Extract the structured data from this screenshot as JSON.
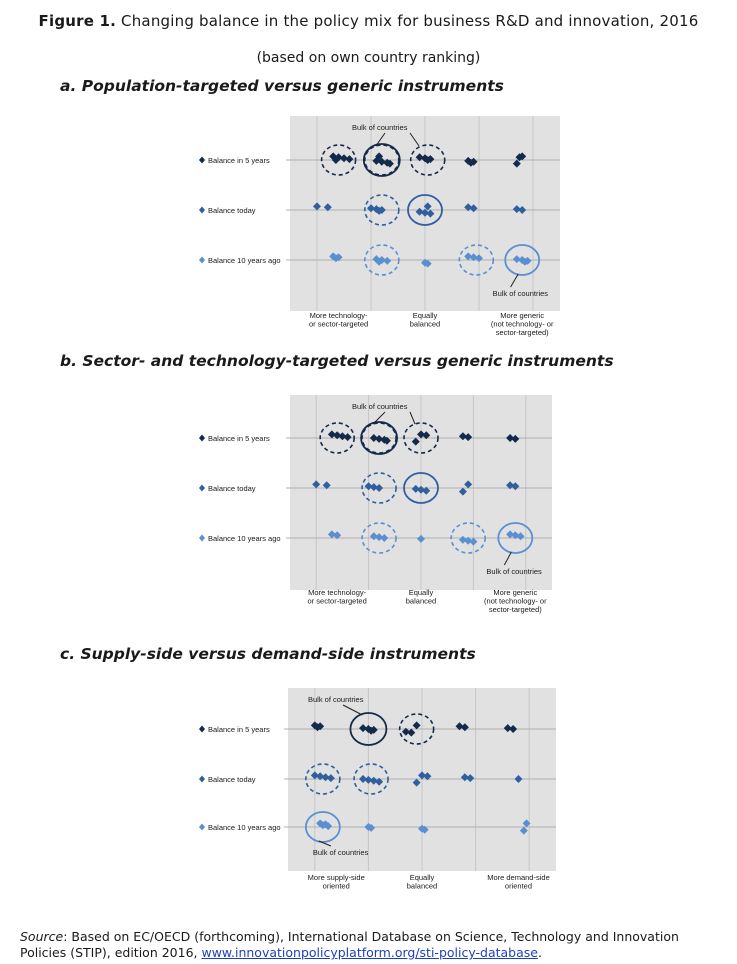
{
  "figure": {
    "label": "Figure 1.",
    "title": "Changing balance in the policy mix for business R&D and innovation, 2016",
    "subtitle": "(based on own country ranking)"
  },
  "colors": {
    "five_years": "#132a4a",
    "today": "#2f5f9e",
    "ten_years_ago": "#5a8fd2",
    "plot_bg": "#e1e1e1",
    "grid": "#c6c6c6"
  },
  "chart_data": [
    {
      "type": "scatter",
      "heading": "a. Population-targeted versus generic instruments",
      "series": [
        {
          "name": "Balance in 5 years",
          "y": 3,
          "points": [
            [
              1.3,
              3
            ],
            [
              1.4,
              3
            ],
            [
              1.5,
              3
            ],
            [
              1.6,
              3
            ],
            [
              1.35,
              3
            ],
            [
              2.1,
              3
            ],
            [
              2.2,
              3
            ],
            [
              2.3,
              3
            ],
            [
              2.35,
              3
            ],
            [
              2.15,
              3
            ],
            [
              2.9,
              3
            ],
            [
              3.0,
              3
            ],
            [
              3.1,
              3
            ],
            [
              3.05,
              3
            ],
            [
              3.8,
              3
            ],
            [
              3.9,
              3
            ],
            [
              3.85,
              3
            ],
            [
              4.7,
              3
            ],
            [
              4.8,
              3
            ],
            [
              4.75,
              3
            ]
          ]
        },
        {
          "name": "Balance today",
          "y": 2,
          "points": [
            [
              1.0,
              2
            ],
            [
              1.2,
              2
            ],
            [
              2.0,
              2
            ],
            [
              2.1,
              2
            ],
            [
              2.2,
              2
            ],
            [
              2.15,
              2
            ],
            [
              2.9,
              2
            ],
            [
              3.0,
              2
            ],
            [
              3.1,
              2
            ],
            [
              3.05,
              2
            ],
            [
              3.8,
              2
            ],
            [
              3.9,
              2
            ],
            [
              4.7,
              2
            ],
            [
              4.8,
              2
            ]
          ]
        },
        {
          "name": "Balance 10 years ago",
          "y": 1,
          "points": [
            [
              1.3,
              1
            ],
            [
              1.4,
              1
            ],
            [
              1.35,
              1
            ],
            [
              2.1,
              1
            ],
            [
              2.2,
              1
            ],
            [
              2.3,
              1
            ],
            [
              2.15,
              1
            ],
            [
              3.0,
              1
            ],
            [
              3.05,
              1
            ],
            [
              3.8,
              1
            ],
            [
              3.9,
              1
            ],
            [
              4.0,
              1
            ],
            [
              4.7,
              1
            ],
            [
              4.8,
              1
            ],
            [
              4.9,
              1
            ],
            [
              4.85,
              1
            ]
          ]
        }
      ],
      "x_axis": {
        "ticks": [
          1,
          2,
          3,
          4,
          5
        ],
        "labels": [
          "More technology-\nor sector-targeted",
          "Equally\nbalanced",
          "More generic\n(not technology- or\nsector-targeted)"
        ]
      },
      "bulk_label": "Bulk of countries",
      "grid": true
    },
    {
      "type": "scatter",
      "heading": "b. Sector- and technology-targeted versus generic instruments",
      "series": [
        {
          "name": "Balance in 5 years",
          "y": 3,
          "points": [
            [
              1.3,
              3
            ],
            [
              1.4,
              3
            ],
            [
              1.5,
              3
            ],
            [
              1.6,
              3
            ],
            [
              2.1,
              3
            ],
            [
              2.2,
              3
            ],
            [
              2.3,
              3
            ],
            [
              2.35,
              3
            ],
            [
              2.9,
              3
            ],
            [
              3.0,
              3
            ],
            [
              3.1,
              3
            ],
            [
              3.8,
              3
            ],
            [
              3.9,
              3
            ],
            [
              4.7,
              3
            ],
            [
              4.8,
              3
            ]
          ]
        },
        {
          "name": "Balance today",
          "y": 2,
          "points": [
            [
              1.0,
              2
            ],
            [
              1.2,
              2
            ],
            [
              2.0,
              2
            ],
            [
              2.1,
              2
            ],
            [
              2.2,
              2
            ],
            [
              2.9,
              2
            ],
            [
              3.0,
              2
            ],
            [
              3.1,
              2
            ],
            [
              3.8,
              2
            ],
            [
              3.9,
              2
            ],
            [
              4.7,
              2
            ],
            [
              4.8,
              2
            ]
          ]
        },
        {
          "name": "Balance 10 years ago",
          "y": 1,
          "points": [
            [
              1.3,
              1
            ],
            [
              1.4,
              1
            ],
            [
              2.1,
              1
            ],
            [
              2.2,
              1
            ],
            [
              2.3,
              1
            ],
            [
              3.0,
              1
            ],
            [
              3.8,
              1
            ],
            [
              3.9,
              1
            ],
            [
              4.0,
              1
            ],
            [
              4.7,
              1
            ],
            [
              4.8,
              1
            ],
            [
              4.9,
              1
            ]
          ]
        }
      ],
      "x_axis": {
        "ticks": [
          1,
          2,
          3,
          4,
          5
        ],
        "labels": [
          "More technology-\nor sector-targeted",
          "Equally\nbalanced",
          "More generic\n(not technology- or\nsector-targeted)"
        ]
      },
      "bulk_label": "Bulk of countries",
      "grid": true
    },
    {
      "type": "scatter",
      "heading": "c. Supply-side versus demand-side instruments",
      "series": [
        {
          "name": "Balance in 5 years",
          "y": 3,
          "points": [
            [
              1.0,
              3
            ],
            [
              1.1,
              3
            ],
            [
              1.05,
              3
            ],
            [
              1.9,
              3
            ],
            [
              2.0,
              3
            ],
            [
              2.1,
              3
            ],
            [
              2.05,
              3
            ],
            [
              2.7,
              3
            ],
            [
              2.8,
              3
            ],
            [
              2.9,
              3
            ],
            [
              3.7,
              3
            ],
            [
              3.8,
              3
            ],
            [
              4.6,
              3
            ],
            [
              4.7,
              3
            ]
          ]
        },
        {
          "name": "Balance today",
          "y": 2,
          "points": [
            [
              1.0,
              2
            ],
            [
              1.1,
              2
            ],
            [
              1.2,
              2
            ],
            [
              1.3,
              2
            ],
            [
              1.9,
              2
            ],
            [
              2.0,
              2
            ],
            [
              2.1,
              2
            ],
            [
              2.2,
              2
            ],
            [
              2.9,
              2
            ],
            [
              3.0,
              2
            ],
            [
              3.1,
              2
            ],
            [
              3.8,
              2
            ],
            [
              3.9,
              2
            ],
            [
              4.8,
              2
            ]
          ]
        },
        {
          "name": "Balance 10 years ago",
          "y": 1,
          "points": [
            [
              1.1,
              1
            ],
            [
              1.2,
              1
            ],
            [
              1.15,
              1
            ],
            [
              1.25,
              1
            ],
            [
              2.0,
              1
            ],
            [
              2.05,
              1
            ],
            [
              3.0,
              1
            ],
            [
              3.05,
              1
            ],
            [
              4.9,
              1
            ],
            [
              4.95,
              1
            ]
          ]
        }
      ],
      "x_axis": {
        "ticks": [
          1,
          2,
          3,
          4,
          5
        ],
        "labels": [
          "More supply-side\noriented",
          "Equally\nbalanced",
          "More demand-side\noriented"
        ]
      },
      "bulk_label": "Bulk of countries",
      "grid": true
    }
  ],
  "source": {
    "prefix": "Source",
    "text": ": Based on EC/OECD (forthcoming), International Database on Science, Technology and Innovation Policies (STIP), edition 2016, ",
    "link": "www.innovationpolicyplatform.org/sti-policy-database",
    "suffix": "."
  }
}
